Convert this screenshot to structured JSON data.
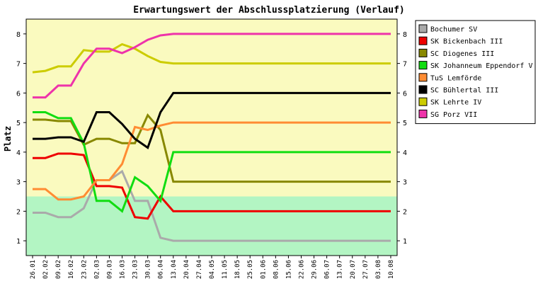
{
  "chart_data": {
    "type": "line",
    "title": "Erwartungswert der Abschlussplatzierung (Verlauf)",
    "xlabel": "",
    "ylabel": "Platz",
    "ylim": [
      8.5,
      0.5
    ],
    "y_axis_reversed": true,
    "y_ticks": [
      1,
      2,
      3,
      4,
      5,
      6,
      7,
      8
    ],
    "y_ticks_both_sides": true,
    "grid": false,
    "legend_placement": "right",
    "bands": [
      {
        "from": 0.5,
        "to": 2.5,
        "color": "#b3f5c3"
      },
      {
        "from": 2.5,
        "to": 8.5,
        "color": "#fafabf"
      }
    ],
    "x": [
      "26.01",
      "02.02",
      "09.02",
      "16.02",
      "23.02",
      "02.03",
      "09.03",
      "16.03",
      "23.03",
      "30.03",
      "06.04",
      "13.04",
      "20.04",
      "27.04",
      "04.05",
      "11.05",
      "18.05",
      "25.05",
      "01.06",
      "08.06",
      "15.06",
      "22.06",
      "29.06",
      "06.07",
      "13.07",
      "20.07",
      "27.07",
      "03.08",
      "10.08"
    ],
    "series": [
      {
        "name": "Bochumer SV",
        "color": "#aaaaaa",
        "values": [
          1.95,
          1.95,
          1.8,
          1.8,
          2.1,
          3.05,
          3.05,
          3.35,
          2.35,
          2.35,
          1.1,
          1.0,
          1.0,
          1.0,
          1.0,
          1.0,
          1.0,
          1.0,
          1.0,
          1.0,
          1.0,
          1.0,
          1.0,
          1.0,
          1.0,
          1.0,
          1.0,
          1.0,
          1.0
        ]
      },
      {
        "name": "SK Bickenbach III",
        "color": "#ee0000",
        "values": [
          3.8,
          3.8,
          3.95,
          3.95,
          3.9,
          2.85,
          2.85,
          2.8,
          1.8,
          1.75,
          2.5,
          2.0,
          2.0,
          2.0,
          2.0,
          2.0,
          2.0,
          2.0,
          2.0,
          2.0,
          2.0,
          2.0,
          2.0,
          2.0,
          2.0,
          2.0,
          2.0,
          2.0,
          2.0
        ]
      },
      {
        "name": "SC Diogenes III",
        "color": "#888800",
        "values": [
          5.1,
          5.1,
          5.05,
          5.05,
          4.25,
          4.45,
          4.45,
          4.3,
          4.3,
          5.25,
          4.75,
          3.0,
          3.0,
          3.0,
          3.0,
          3.0,
          3.0,
          3.0,
          3.0,
          3.0,
          3.0,
          3.0,
          3.0,
          3.0,
          3.0,
          3.0,
          3.0,
          3.0,
          3.0
        ]
      },
      {
        "name": "SK Johanneum Eppendorf V",
        "color": "#11dd11",
        "values": [
          5.35,
          5.35,
          5.15,
          5.15,
          4.3,
          2.35,
          2.35,
          2.0,
          3.15,
          2.85,
          2.35,
          4.0,
          4.0,
          4.0,
          4.0,
          4.0,
          4.0,
          4.0,
          4.0,
          4.0,
          4.0,
          4.0,
          4.0,
          4.0,
          4.0,
          4.0,
          4.0,
          4.0,
          4.0
        ]
      },
      {
        "name": "TuS Lemförde",
        "color": "#ff8c33",
        "values": [
          2.75,
          2.75,
          2.4,
          2.4,
          2.5,
          3.05,
          3.05,
          3.6,
          4.85,
          4.75,
          4.9,
          5.0,
          5.0,
          5.0,
          5.0,
          5.0,
          5.0,
          5.0,
          5.0,
          5.0,
          5.0,
          5.0,
          5.0,
          5.0,
          5.0,
          5.0,
          5.0,
          5.0,
          5.0
        ]
      },
      {
        "name": "SC Bühlertal III",
        "color": "#000000",
        "values": [
          4.45,
          4.45,
          4.5,
          4.5,
          4.35,
          5.35,
          5.35,
          4.95,
          4.45,
          4.15,
          5.35,
          6.0,
          6.0,
          6.0,
          6.0,
          6.0,
          6.0,
          6.0,
          6.0,
          6.0,
          6.0,
          6.0,
          6.0,
          6.0,
          6.0,
          6.0,
          6.0,
          6.0,
          6.0
        ]
      },
      {
        "name": "SK Lehrte IV",
        "color": "#cccc00",
        "values": [
          6.7,
          6.75,
          6.9,
          6.9,
          7.45,
          7.4,
          7.4,
          7.65,
          7.5,
          7.25,
          7.05,
          7.0,
          7.0,
          7.0,
          7.0,
          7.0,
          7.0,
          7.0,
          7.0,
          7.0,
          7.0,
          7.0,
          7.0,
          7.0,
          7.0,
          7.0,
          7.0,
          7.0,
          7.0
        ]
      },
      {
        "name": "SG Porz VII",
        "color": "#ee33aa",
        "values": [
          5.85,
          5.85,
          6.25,
          6.25,
          7.0,
          7.5,
          7.5,
          7.35,
          7.55,
          7.8,
          7.95,
          8.0,
          8.0,
          8.0,
          8.0,
          8.0,
          8.0,
          8.0,
          8.0,
          8.0,
          8.0,
          8.0,
          8.0,
          8.0,
          8.0,
          8.0,
          8.0,
          8.0,
          8.0
        ]
      }
    ]
  }
}
